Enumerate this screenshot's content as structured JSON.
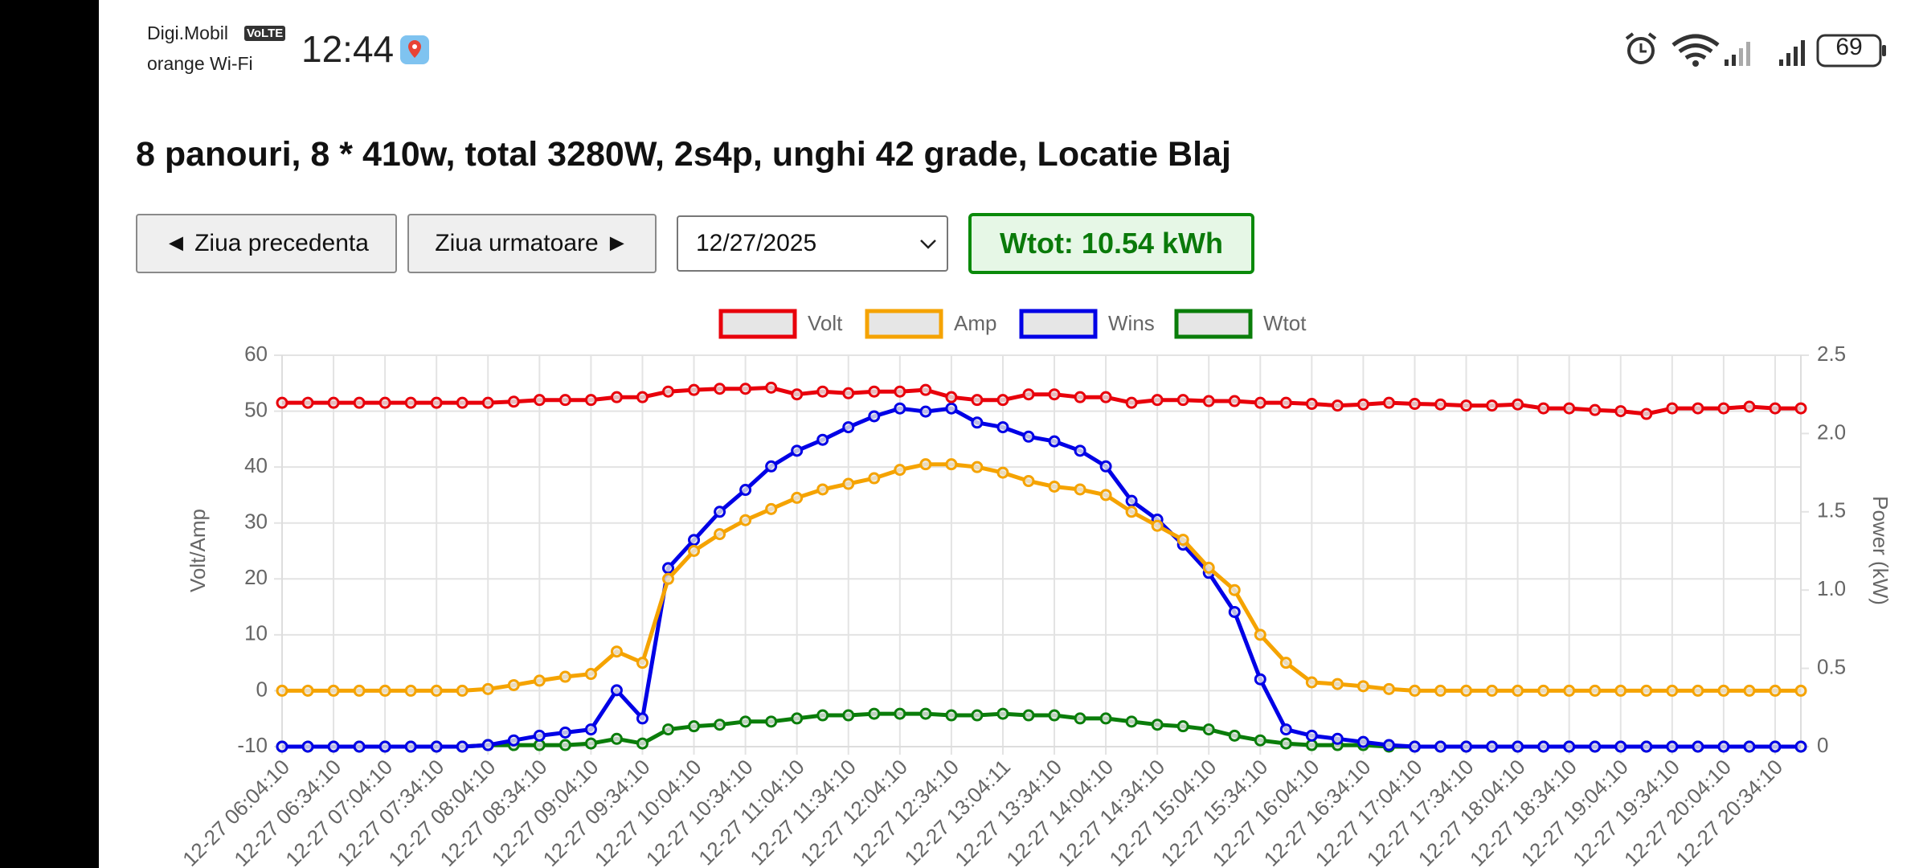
{
  "status_bar": {
    "carrier1": "Digi.Mobil",
    "volte": "VoLTE",
    "carrier2": "orange Wi-Fi",
    "time": "12:44",
    "battery": "69"
  },
  "header": {
    "title": "8 panouri, 8 * 410w, total 3280W, 2s4p, unghi 42 grade, Locatie Blaj"
  },
  "controls": {
    "prev": "◄ Ziua precedenta",
    "next": "Ziua urmatoare ►",
    "date": "12/27/2025",
    "wtot": "Wtot: 10.54 kWh"
  },
  "chart_data": {
    "type": "line",
    "categories": [
      "12-27 06:04:10",
      null,
      "12-27 06:34:10",
      null,
      "12-27 07:04:10",
      null,
      "12-27 07:34:10",
      null,
      "12-27 08:04:10",
      null,
      "12-27 08:34:10",
      null,
      "12-27 09:04:10",
      null,
      "12-27 09:34:10",
      null,
      "12-27 10:04:10",
      null,
      "12-27 10:34:10",
      null,
      "12-27 11:04:10",
      null,
      "12-27 11:34:10",
      null,
      "12-27 12:04:10",
      null,
      "12-27 12:34:10",
      null,
      "12-27 13:04:11",
      null,
      "12-27 13:34:10",
      null,
      "12-27 14:04:10",
      null,
      "12-27 14:34:10",
      null,
      "12-27 15:04:10",
      null,
      "12-27 15:34:10",
      null,
      "12-27 16:04:10",
      null,
      "12-27 16:34:10",
      null,
      "12-27 17:04:10",
      null,
      "12-27 17:34:10",
      null,
      "12-27 18:04:10",
      null,
      "12-27 18:34:10",
      null,
      "12-27 19:04:10",
      null,
      "12-27 19:34:10",
      null,
      "12-27 20:04:10",
      null,
      "12-27 20:34:10",
      null
    ],
    "series": [
      {
        "name": "Volt",
        "color": "#e8000b",
        "values": [
          51.5,
          51.5,
          51.5,
          51.5,
          51.5,
          51.5,
          51.5,
          51.5,
          51.5,
          51.7,
          52,
          52,
          52,
          52.5,
          52.5,
          53.5,
          53.8,
          54,
          54,
          54.2,
          53,
          53.5,
          53.2,
          53.5,
          53.5,
          53.8,
          52.5,
          52,
          52,
          53,
          53,
          52.5,
          52.5,
          51.5,
          52,
          52,
          51.8,
          51.8,
          51.5,
          51.5,
          51.3,
          51,
          51.2,
          51.5,
          51.3,
          51.2,
          51,
          51,
          51.2,
          50.5,
          50.5,
          50.2,
          50,
          49.5,
          50.5,
          50.5,
          50.5,
          50.8,
          50.5,
          50.5
        ]
      },
      {
        "name": "Amp",
        "color": "#f5a300",
        "values": [
          0,
          0,
          0,
          0,
          0,
          0,
          0,
          0,
          0.3,
          1,
          1.8,
          2.5,
          3,
          7,
          5,
          20,
          25,
          28,
          30.5,
          32.5,
          34.5,
          36,
          37,
          38,
          39.5,
          40.5,
          40.5,
          40,
          39,
          37.5,
          36.5,
          36,
          35,
          32,
          29.5,
          27,
          22,
          18,
          10,
          5,
          1.5,
          1.2,
          0.8,
          0.3,
          0,
          0,
          0,
          0,
          0,
          0,
          0,
          0,
          0,
          0,
          0,
          0,
          0,
          0,
          0,
          0
        ]
      },
      {
        "name": "Wins",
        "color": "#0000e6",
        "axis": "y2",
        "values": [
          0,
          0,
          0,
          0,
          0,
          0,
          0,
          0,
          0.01,
          0.04,
          0.07,
          0.09,
          0.11,
          0.36,
          0.18,
          1.14,
          1.32,
          1.5,
          1.64,
          1.79,
          1.89,
          1.96,
          2.04,
          2.11,
          2.16,
          2.14,
          2.16,
          2.07,
          2.04,
          1.98,
          1.95,
          1.89,
          1.79,
          1.57,
          1.45,
          1.29,
          1.11,
          0.86,
          0.43,
          0.11,
          0.07,
          0.05,
          0.03,
          0.01,
          0,
          0,
          0,
          0,
          0,
          0,
          0,
          0,
          0,
          0,
          0,
          0,
          0,
          0,
          0,
          0
        ]
      },
      {
        "name": "Wtot",
        "color": "#0a7d0a",
        "axis": "y2",
        "values": [
          0,
          0,
          0,
          0,
          0,
          0,
          0,
          0,
          0.01,
          0.01,
          0.01,
          0.01,
          0.02,
          0.05,
          0.02,
          0.11,
          0.13,
          0.14,
          0.16,
          0.16,
          0.18,
          0.2,
          0.2,
          0.21,
          0.21,
          0.21,
          0.2,
          0.2,
          0.21,
          0.2,
          0.2,
          0.18,
          0.18,
          0.16,
          0.14,
          0.13,
          0.11,
          0.07,
          0.04,
          0.02,
          0.01,
          0.01,
          0.01,
          0,
          0,
          0,
          0,
          0,
          0,
          0,
          0,
          0,
          0,
          0,
          0,
          0,
          0,
          0,
          0,
          0
        ]
      }
    ],
    "ylabel": "Volt/Amp",
    "y2label": "Power (kW)",
    "ylim": [
      -10,
      60
    ],
    "yticks": [
      -10,
      0,
      10,
      20,
      30,
      40,
      50,
      60
    ],
    "y2lim": [
      0,
      2.5
    ],
    "y2ticks": [
      0,
      0.5,
      {
        "value": 1,
        "label": "1.0"
      },
      1.5,
      {
        "value": 2,
        "label": "2.0"
      },
      2.5
    ],
    "grid": true,
    "legend": "top"
  }
}
